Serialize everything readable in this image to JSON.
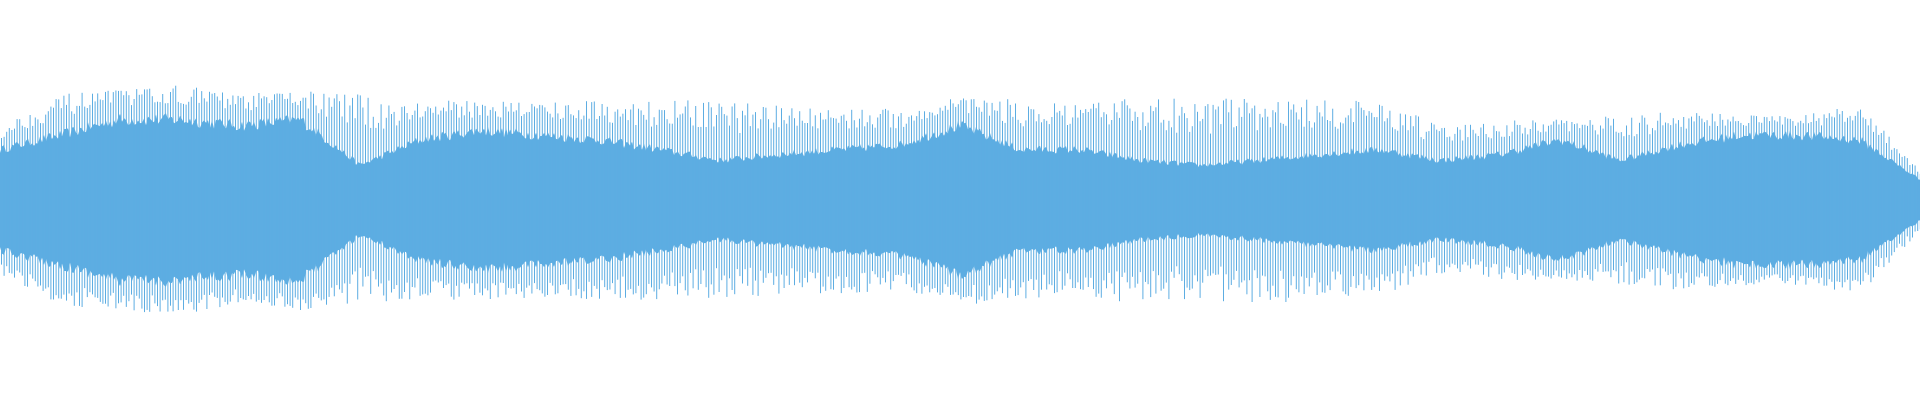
{
  "waveform": {
    "color": "#5dade2",
    "background": "#ffffff",
    "peak_envelope": [
      0.62,
      0.88,
      0.92,
      0.96,
      0.88,
      0.92,
      0.88,
      0.83,
      0.83,
      0.83,
      0.83,
      0.83,
      0.83,
      0.79,
      0.79,
      0.75,
      0.88,
      0.83,
      0.79,
      0.88,
      0.83,
      0.88,
      0.83,
      0.83,
      0.62,
      0.67,
      0.67,
      0.71,
      0.75,
      0.71,
      0.71,
      0.79,
      0.25
    ],
    "rms_envelope": [
      0.42,
      0.54,
      0.67,
      0.67,
      0.62,
      0.67,
      0.29,
      0.5,
      0.58,
      0.54,
      0.5,
      0.42,
      0.33,
      0.38,
      0.42,
      0.46,
      0.62,
      0.42,
      0.42,
      0.33,
      0.29,
      0.33,
      0.38,
      0.42,
      0.33,
      0.38,
      0.5,
      0.33,
      0.46,
      0.54,
      0.54,
      0.5,
      0.17
    ]
  }
}
